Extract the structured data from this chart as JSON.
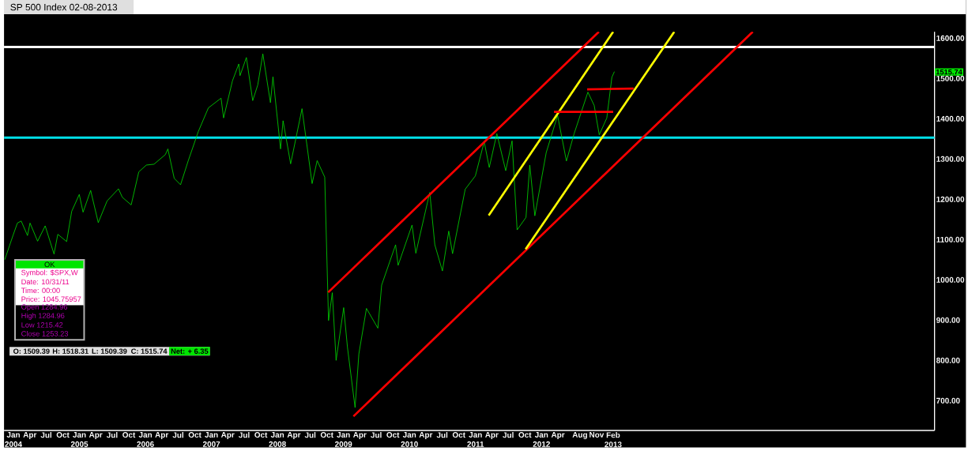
{
  "chart_data": {
    "type": "line",
    "title": "SP 500 Index 02-08-2013",
    "xlim": [
      "2003-11-10",
      "2017-12-15"
    ],
    "ylim": [
      626,
      1616
    ],
    "yticks": [
      {
        "value": 700,
        "label": "700.00"
      },
      {
        "value": 800,
        "label": "800.00"
      },
      {
        "value": 900,
        "label": "900.00"
      },
      {
        "value": 1000,
        "label": "1000.00"
      },
      {
        "value": 1100,
        "label": "1100.00"
      },
      {
        "value": 1200,
        "label": "1200.00"
      },
      {
        "value": 1300,
        "label": "1300.00"
      },
      {
        "value": 1400,
        "label": "1400.00"
      },
      {
        "value": 1500,
        "label": "1500.00"
      },
      {
        "value": 1600,
        "label": "1600.00"
      }
    ],
    "xticks": [
      {
        "value": "2004-01",
        "label": "Jan 2004"
      },
      {
        "value": "2004-04",
        "label": "Apr"
      },
      {
        "value": "2004-07",
        "label": "Jul"
      },
      {
        "value": "2004-10",
        "label": "Oct"
      },
      {
        "value": "2005-01",
        "label": "Jan 2005"
      },
      {
        "value": "2005-04",
        "label": "Apr"
      },
      {
        "value": "2005-07",
        "label": "Jul"
      },
      {
        "value": "2005-10",
        "label": "Oct"
      },
      {
        "value": "2006-01",
        "label": "Jan 2006"
      },
      {
        "value": "2006-04",
        "label": "Apr"
      },
      {
        "value": "2006-07",
        "label": "Jul"
      },
      {
        "value": "2006-10",
        "label": "Oct"
      },
      {
        "value": "2007-01",
        "label": "Jan 2007"
      },
      {
        "value": "2007-04",
        "label": "Apr"
      },
      {
        "value": "2007-07",
        "label": "Jul"
      },
      {
        "value": "2007-10",
        "label": "Oct"
      },
      {
        "value": "2008-01",
        "label": "Jan 2008"
      },
      {
        "value": "2008-04",
        "label": "Apr"
      },
      {
        "value": "2008-07",
        "label": "Jul"
      },
      {
        "value": "2008-10",
        "label": "Oct"
      },
      {
        "value": "2009-01",
        "label": "Jan 2009"
      },
      {
        "value": "2009-04",
        "label": "Apr"
      },
      {
        "value": "2009-07",
        "label": "Jul"
      },
      {
        "value": "2009-10",
        "label": "Oct"
      },
      {
        "value": "2010-01",
        "label": "Jan 2010"
      },
      {
        "value": "2010-04",
        "label": "Apr"
      },
      {
        "value": "2010-07",
        "label": "Jul"
      },
      {
        "value": "2010-10",
        "label": "Oct"
      },
      {
        "value": "2011-01",
        "label": "Jan 2011"
      },
      {
        "value": "2011-04",
        "label": "Apr"
      },
      {
        "value": "2011-07",
        "label": "Jul"
      },
      {
        "value": "2011-10",
        "label": "Oct"
      },
      {
        "value": "2012-01",
        "label": "Jan 2012"
      },
      {
        "value": "2012-04",
        "label": "Apr"
      },
      {
        "value": "2012-08",
        "label": "Aug"
      },
      {
        "value": "2012-11",
        "label": "Nov"
      },
      {
        "value": "2013-02",
        "label": "Feb 2013"
      }
    ],
    "marker": "none",
    "series": [
      {
        "color": "#00e000",
        "x": [
          "2003-11-14",
          "2003-12-31",
          "2004-01-23",
          "2004-02-13",
          "2004-03-19",
          "2004-04-02",
          "2004-05-14",
          "2004-06-25",
          "2004-08-13",
          "2004-09-03",
          "2004-10-22",
          "2004-11-19",
          "2004-12-31",
          "2005-01-21",
          "2005-03-04",
          "2005-04-15",
          "2005-06-03",
          "2005-08-05",
          "2005-08-26",
          "2005-10-14",
          "2005-11-25",
          "2006-01-06",
          "2006-02-17",
          "2006-04-21",
          "2006-05-05",
          "2006-06-09",
          "2006-07-14",
          "2006-08-25",
          "2006-10-20",
          "2006-12-15",
          "2007-02-23",
          "2007-03-09",
          "2007-04-27",
          "2007-06-01",
          "2007-06-08",
          "2007-07-13",
          "2007-08-17",
          "2007-09-14",
          "2007-10-12",
          "2007-11-23",
          "2007-12-07",
          "2008-01-18",
          "2008-02-01",
          "2008-03-14",
          "2008-05-16",
          "2008-07-11",
          "2008-08-08",
          "2008-09-19",
          "2008-10-10",
          "2008-10-31",
          "2008-11-21",
          "2009-01-02",
          "2009-01-23",
          "2009-03-06",
          "2009-03-27",
          "2009-05-08",
          "2009-07-10",
          "2009-07-31",
          "2009-10-16",
          "2009-10-30",
          "2010-01-15",
          "2010-02-05",
          "2010-04-23",
          "2010-05-21",
          "2010-07-02",
          "2010-08-06",
          "2010-08-27",
          "2010-11-05",
          "2010-12-31",
          "2011-02-18",
          "2011-03-18",
          "2011-04-29",
          "2011-06-17",
          "2011-07-22",
          "2011-08-19",
          "2011-10-07",
          "2011-10-28",
          "2011-11-25",
          "2012-01-27",
          "2012-03-30",
          "2012-05-18",
          "2012-06-29",
          "2012-09-14",
          "2012-10-19",
          "2012-11-16",
          "2012-12-28",
          "2013-01-25",
          "2013-02-08"
        ],
        "values": [
          1050,
          1112,
          1141,
          1146,
          1110,
          1141,
          1096,
          1134,
          1064,
          1113,
          1095,
          1170,
          1212,
          1168,
          1222,
          1142,
          1196,
          1226,
          1205,
          1186,
          1268,
          1285,
          1287,
          1311,
          1325,
          1252,
          1236,
          1295,
          1368,
          1427,
          1451,
          1402,
          1494,
          1536,
          1507,
          1552,
          1445,
          1484,
          1561,
          1440,
          1504,
          1325,
          1395,
          1288,
          1425,
          1239,
          1296,
          1255,
          899,
          968,
          800,
          931,
          832,
          683,
          816,
          929,
          880,
          987,
          1087,
          1036,
          1136,
          1066,
          1217,
          1087,
          1022,
          1121,
          1065,
          1225,
          1258,
          1343,
          1279,
          1363,
          1271,
          1345,
          1124,
          1155,
          1285,
          1159,
          1316,
          1408,
          1295,
          1362,
          1466,
          1433,
          1360,
          1402,
          1503,
          1517
        ]
      },
      {
        "color": "#ff0000",
        "x": [
          "2008-10-08",
          "2012-11-14"
        ],
        "values": [
          969,
          1616
        ]
      },
      {
        "color": "#ff0000",
        "x": [
          "2009-02-25",
          "2015-03-15"
        ],
        "values": [
          661,
          1616
        ]
      },
      {
        "color": "#ffff00",
        "x": [
          "2011-03-15",
          "2013-02-01"
        ],
        "values": [
          1160,
          1616
        ]
      },
      {
        "color": "#ffff00",
        "x": [
          "2011-10-05",
          "2014-01-05"
        ],
        "values": [
          1076,
          1616
        ]
      },
      {
        "color": "#ff0000",
        "x": [
          "2012-03-10",
          "2013-02-01"
        ],
        "values": [
          1417,
          1417
        ]
      },
      {
        "color": "#ff0000",
        "x": [
          "2012-09-10",
          "2013-05-25"
        ],
        "values": [
          1473,
          1475
        ]
      }
    ],
    "ref_lines": [
      {
        "axis": "y",
        "value": 1578,
        "color": "#ffffff"
      },
      {
        "axis": "y",
        "value": 1353,
        "color": "#00e0e8"
      }
    ],
    "annotations": [
      "OK",
      "Symbol: $SPX,W",
      "Date: 10/31/11",
      "Time: 00:00",
      "Price: 1045.75957",
      "Open 1284.96",
      "High 1284.96",
      "Low 1215.42",
      "Close 1253.23",
      "O: 1509.39",
      "H: 1518.31",
      "L: 1509.39",
      "C: 1515.74",
      "Net: + 6.35",
      "1515.74"
    ]
  }
}
